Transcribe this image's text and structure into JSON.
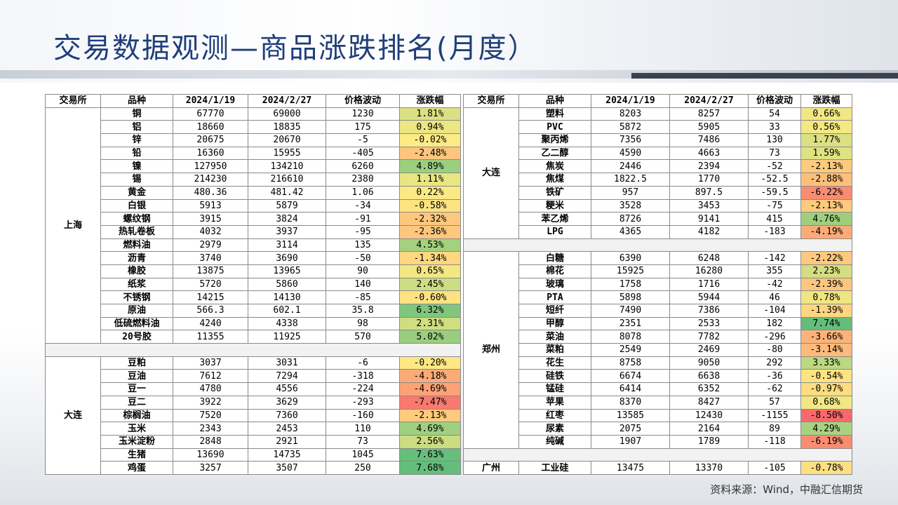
{
  "title": "交易数据观测—商品涨跌排名(月度）",
  "source": "资料来源：Wind，中融汇信期货",
  "headers": [
    "交易所",
    "品种",
    "2024/1/19",
    "2024/2/27",
    "价格波动",
    "涨跌幅"
  ],
  "left_table": [
    {
      "exchange": "上海",
      "rows": [
        [
          "铜",
          "67770",
          "69000",
          "1230",
          "1.81%"
        ],
        [
          "铝",
          "18660",
          "18835",
          "175",
          "0.94%"
        ],
        [
          "锌",
          "20675",
          "20670",
          "-5",
          "-0.02%"
        ],
        [
          "铅",
          "16360",
          "15955",
          "-405",
          "-2.48%"
        ],
        [
          "镍",
          "127950",
          "134210",
          "6260",
          "4.89%"
        ],
        [
          "锡",
          "214230",
          "216610",
          "2380",
          "1.11%"
        ],
        [
          "黄金",
          "480.36",
          "481.42",
          "1.06",
          "0.22%"
        ],
        [
          "白银",
          "5913",
          "5879",
          "-34",
          "-0.58%"
        ],
        [
          "螺纹钢",
          "3915",
          "3824",
          "-91",
          "-2.32%"
        ],
        [
          "热轧卷板",
          "4032",
          "3937",
          "-95",
          "-2.36%"
        ],
        [
          "燃料油",
          "2979",
          "3114",
          "135",
          "4.53%"
        ],
        [
          "沥青",
          "3740",
          "3690",
          "-50",
          "-1.34%"
        ],
        [
          "橡胶",
          "13875",
          "13965",
          "90",
          "0.65%"
        ],
        [
          "纸浆",
          "5720",
          "5860",
          "140",
          "2.45%"
        ],
        [
          "不锈钢",
          "14215",
          "14130",
          "-85",
          "-0.60%"
        ],
        [
          "原油",
          "566.3",
          "602.1",
          "35.8",
          "6.32%"
        ],
        [
          "低硫燃料油",
          "4240",
          "4338",
          "98",
          "2.31%"
        ],
        [
          "20号胶",
          "11355",
          "11925",
          "570",
          "5.02%"
        ]
      ]
    },
    {
      "exchange": "大连",
      "rows": [
        [
          "豆粕",
          "3037",
          "3031",
          "-6",
          "-0.20%"
        ],
        [
          "豆油",
          "7612",
          "7294",
          "-318",
          "-4.18%"
        ],
        [
          "豆一",
          "4780",
          "4556",
          "-224",
          "-4.69%"
        ],
        [
          "豆二",
          "3922",
          "3629",
          "-293",
          "-7.47%"
        ],
        [
          "棕榈油",
          "7520",
          "7360",
          "-160",
          "-2.13%"
        ],
        [
          "玉米",
          "2343",
          "2453",
          "110",
          "4.69%"
        ],
        [
          "玉米淀粉",
          "2848",
          "2921",
          "73",
          "2.56%"
        ],
        [
          "生猪",
          "13690",
          "14735",
          "1045",
          "7.63%"
        ],
        [
          "鸡蛋",
          "3257",
          "3507",
          "250",
          "7.68%"
        ]
      ]
    }
  ],
  "right_table": [
    {
      "exchange": "大连",
      "rows": [
        [
          "塑料",
          "8203",
          "8257",
          "54",
          "0.66%"
        ],
        [
          "PVC",
          "5872",
          "5905",
          "33",
          "0.56%"
        ],
        [
          "聚丙烯",
          "7356",
          "7486",
          "130",
          "1.77%"
        ],
        [
          "乙二醇",
          "4590",
          "4663",
          "73",
          "1.59%"
        ],
        [
          "焦炭",
          "2446",
          "2394",
          "-52",
          "-2.13%"
        ],
        [
          "焦煤",
          "1822.5",
          "1770",
          "-52.5",
          "-2.88%"
        ],
        [
          "铁矿",
          "957",
          "897.5",
          "-59.5",
          "-6.22%"
        ],
        [
          "粳米",
          "3528",
          "3453",
          "-75",
          "-2.13%"
        ],
        [
          "苯乙烯",
          "8726",
          "9141",
          "415",
          "4.76%"
        ],
        [
          "LPG",
          "4365",
          "4182",
          "-183",
          "-4.19%"
        ]
      ]
    },
    {
      "exchange": "郑州",
      "rows": [
        [
          "白糖",
          "6390",
          "6248",
          "-142",
          "-2.22%"
        ],
        [
          "棉花",
          "15925",
          "16280",
          "355",
          "2.23%"
        ],
        [
          "玻璃",
          "1758",
          "1716",
          "-42",
          "-2.39%"
        ],
        [
          "PTA",
          "5898",
          "5944",
          "46",
          "0.78%"
        ],
        [
          "短纤",
          "7490",
          "7386",
          "-104",
          "-1.39%"
        ],
        [
          "甲醇",
          "2351",
          "2533",
          "182",
          "7.74%"
        ],
        [
          "菜油",
          "8078",
          "7782",
          "-296",
          "-3.66%"
        ],
        [
          "菜粕",
          "2549",
          "2469",
          "-80",
          "-3.14%"
        ],
        [
          "花生",
          "8758",
          "9050",
          "292",
          "3.33%"
        ],
        [
          "硅铁",
          "6674",
          "6638",
          "-36",
          "-0.54%"
        ],
        [
          "锰硅",
          "6414",
          "6352",
          "-62",
          "-0.97%"
        ],
        [
          "苹果",
          "8370",
          "8427",
          "57",
          "0.68%"
        ],
        [
          "红枣",
          "13585",
          "12430",
          "-1155",
          "-8.50%"
        ],
        [
          "尿素",
          "2075",
          "2164",
          "89",
          "4.29%"
        ],
        [
          "纯碱",
          "1907",
          "1789",
          "-118",
          "-6.19%"
        ]
      ]
    },
    {
      "exchange": "广州",
      "rows": [
        [
          "工业硅",
          "13475",
          "13370",
          "-105",
          "-0.78%"
        ]
      ]
    }
  ]
}
